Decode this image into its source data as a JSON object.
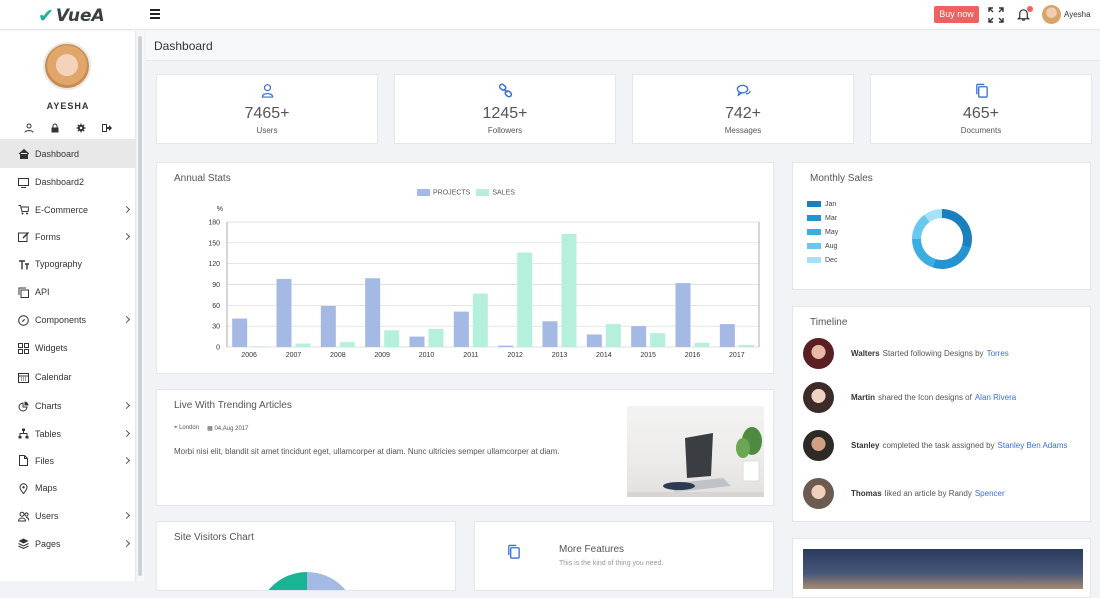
{
  "brand": {
    "name": "VueA"
  },
  "topbar": {
    "buy_label": "Buy now",
    "user_name": "Ayesha"
  },
  "sidebar": {
    "user_name": "AYESHA",
    "items": [
      {
        "label": "Dashboard",
        "icon": "home-icon",
        "chevron": false,
        "active": true
      },
      {
        "label": "Dashboard2",
        "icon": "monitor-icon",
        "chevron": false
      },
      {
        "label": "E-Commerce",
        "icon": "cart-icon",
        "chevron": true
      },
      {
        "label": "Forms",
        "icon": "edit-icon",
        "chevron": true
      },
      {
        "label": "Typography",
        "icon": "text-icon",
        "chevron": false
      },
      {
        "label": "API",
        "icon": "copy-icon",
        "chevron": false
      },
      {
        "label": "Components",
        "icon": "compass-icon",
        "chevron": true
      },
      {
        "label": "Widgets",
        "icon": "grid-icon",
        "chevron": false
      },
      {
        "label": "Calendar",
        "icon": "calendar-icon",
        "chevron": false
      },
      {
        "label": "Charts",
        "icon": "pie-chart-icon",
        "chevron": true
      },
      {
        "label": "Tables",
        "icon": "sitemap-icon",
        "chevron": true
      },
      {
        "label": "Files",
        "icon": "file-icon",
        "chevron": true
      },
      {
        "label": "Maps",
        "icon": "map-pin-icon",
        "chevron": false
      },
      {
        "label": "Users",
        "icon": "users-icon",
        "chevron": true
      },
      {
        "label": "Pages",
        "icon": "layers-icon",
        "chevron": true
      }
    ]
  },
  "page": {
    "title": "Dashboard"
  },
  "stats": [
    {
      "value": "7465+",
      "label": "Users",
      "icon": "user-icon"
    },
    {
      "value": "1245+",
      "label": "Followers",
      "icon": "link-icon"
    },
    {
      "value": "742+",
      "label": "Messages",
      "icon": "chat-icon"
    },
    {
      "value": "465+",
      "label": "Documents",
      "icon": "documents-icon"
    }
  ],
  "annual": {
    "title": "Annual Stats",
    "chart_data": {
      "type": "bar",
      "categories": [
        "2006",
        "2007",
        "2008",
        "2009",
        "2010",
        "2011",
        "2012",
        "2013",
        "2014",
        "2015",
        "2016",
        "2017"
      ],
      "series": [
        {
          "name": "PROJECTS",
          "values": [
            41,
            98,
            59,
            99,
            15,
            51,
            2,
            37,
            18,
            30,
            92,
            33
          ],
          "color": "#a4b9e3"
        },
        {
          "name": "SALES",
          "values": [
            1,
            5,
            7,
            24,
            26,
            77,
            136,
            163,
            33,
            20,
            6,
            3
          ],
          "color": "#b5f0dc"
        }
      ],
      "ylabel": "%",
      "yticks": [
        0,
        30,
        60,
        90,
        120,
        150,
        180
      ],
      "ylim": [
        0,
        180
      ],
      "legend": "top"
    }
  },
  "monthly": {
    "title": "Monthly Sales",
    "chart_data": {
      "type": "pie",
      "labels": [
        "Jan",
        "Mar",
        "May",
        "Aug",
        "Dec"
      ],
      "values": [
        30,
        25,
        20,
        15,
        10
      ],
      "colors": [
        "#1a7fbf",
        "#2393d2",
        "#3aaee0",
        "#69c8ee",
        "#a6e1f7"
      ],
      "legend": "left"
    }
  },
  "timeline": {
    "title": "Timeline",
    "items": [
      {
        "name": "Walters",
        "text": "Started following Designs by",
        "link": "Torres"
      },
      {
        "name": "Martin",
        "text": "shared the Icon designs of",
        "link": "Alan Rivera"
      },
      {
        "name": "Stanley",
        "text": "completed the task assigned by",
        "link": "Stanley Ben Adams"
      },
      {
        "name": "Thomas",
        "text": "liked an article by Randy",
        "link": "Spencer"
      }
    ]
  },
  "article": {
    "title": "Live With Trending Articles",
    "location": "London",
    "date": "04,Aug 2017",
    "body": "Morbi nisi elit, blandit sit amet tincidunt eget, ullamcorper at diam. Nunc ultricies semper ullamcorper at diam."
  },
  "visitors": {
    "title": "Site Visitors Chart"
  },
  "features": {
    "title": "More Features",
    "subtitle": "This is the kind of thing you need."
  }
}
